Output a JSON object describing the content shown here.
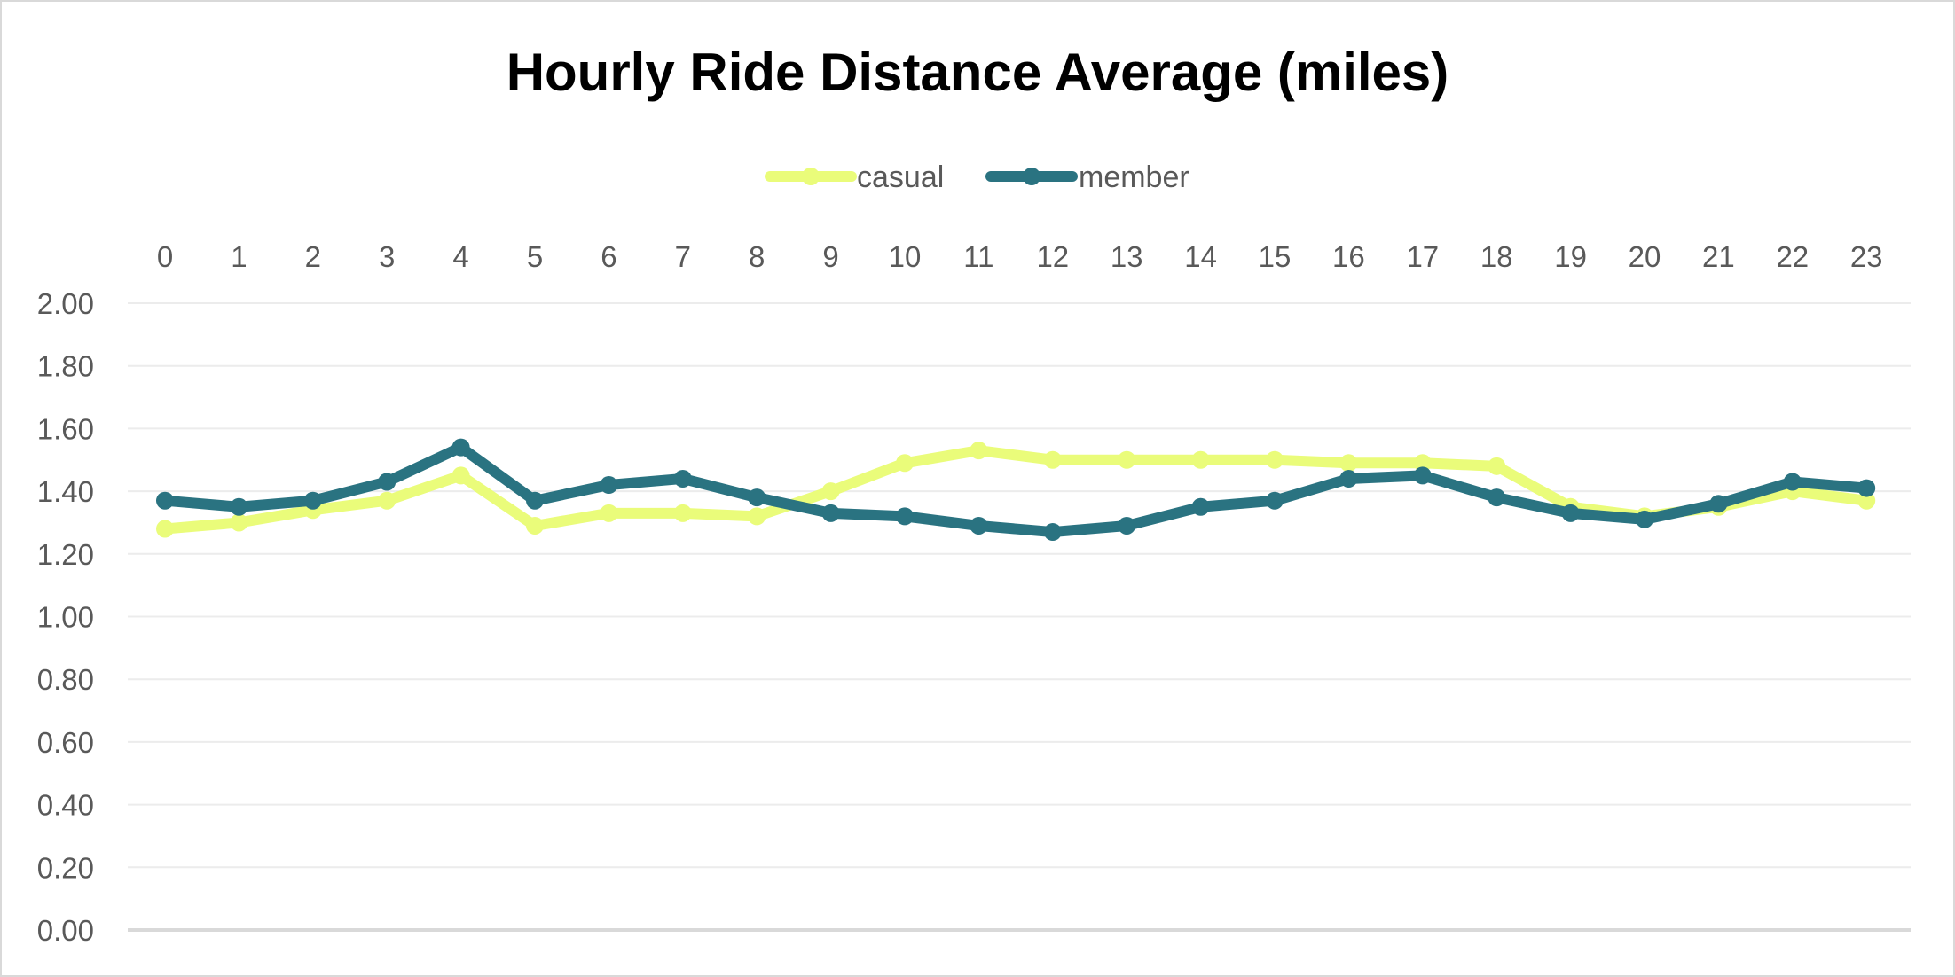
{
  "chart_data": {
    "type": "line",
    "title": "Hourly Ride Distance Average (miles)",
    "xlabel": "",
    "ylabel": "",
    "x_axis_position": "top",
    "categories": [
      "0",
      "1",
      "2",
      "3",
      "4",
      "5",
      "6",
      "7",
      "8",
      "9",
      "10",
      "11",
      "12",
      "13",
      "14",
      "15",
      "16",
      "17",
      "18",
      "19",
      "20",
      "21",
      "22",
      "23"
    ],
    "yticks": [
      "0.00",
      "0.20",
      "0.40",
      "0.60",
      "0.80",
      "1.00",
      "1.20",
      "1.40",
      "1.60",
      "1.80",
      "2.00"
    ],
    "ylim": [
      0,
      2
    ],
    "grid": true,
    "legend_position": "top",
    "series": [
      {
        "name": "casual",
        "color": "#eafc7a",
        "values": [
          1.28,
          1.3,
          1.34,
          1.37,
          1.45,
          1.29,
          1.33,
          1.33,
          1.32,
          1.4,
          1.49,
          1.53,
          1.5,
          1.5,
          1.5,
          1.5,
          1.49,
          1.49,
          1.48,
          1.35,
          1.32,
          1.35,
          1.4,
          1.37
        ]
      },
      {
        "name": "member",
        "color": "#2a7381",
        "values": [
          1.37,
          1.35,
          1.37,
          1.43,
          1.54,
          1.37,
          1.42,
          1.44,
          1.38,
          1.33,
          1.32,
          1.29,
          1.27,
          1.29,
          1.35,
          1.37,
          1.44,
          1.45,
          1.38,
          1.33,
          1.31,
          1.36,
          1.43,
          1.41
        ]
      }
    ]
  }
}
